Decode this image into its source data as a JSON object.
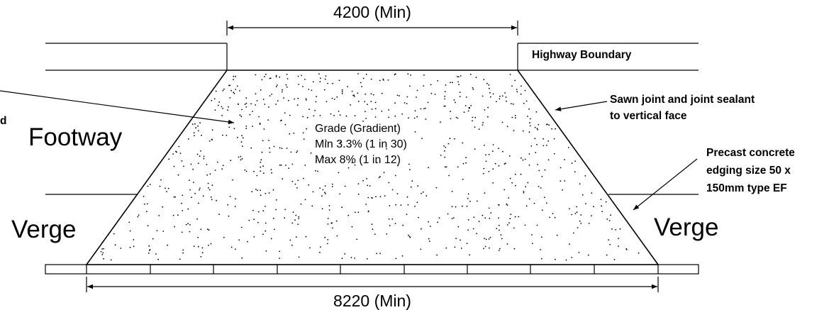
{
  "dimensions": {
    "top": "4200 (Min)",
    "bottom": "8220 (Min)"
  },
  "labels": {
    "highway_boundary": "Highway Boundary",
    "footway": "Footway",
    "verge_left": "Verge",
    "verge_right": "Verge",
    "left_fragment": "d"
  },
  "grade": {
    "line1": "Grade (Gradient)",
    "line2": "Min 3.3% (1 in 30)",
    "line3": "Max 8% (1 in 12)"
  },
  "notes": {
    "sawn_joint": {
      "line1": "Sawn joint and joint sealant",
      "line2": "to vertical face"
    },
    "edging": {
      "line1": "Precast concrete",
      "line2": "edging size 50 x",
      "line3": "150mm type EF"
    }
  }
}
